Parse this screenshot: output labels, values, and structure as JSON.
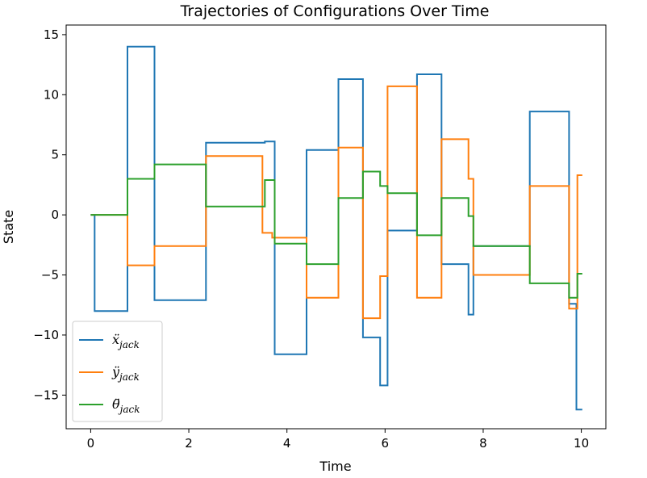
{
  "chart_data": {
    "type": "line",
    "title": "Trajectories of Configurations Over Time",
    "xlabel": "Time",
    "ylabel": "State",
    "xlim": [
      -0.5,
      10.5
    ],
    "ylim": [
      -17.8,
      15.8
    ],
    "xticks": [
      0,
      2,
      4,
      6,
      8,
      10
    ],
    "yticks": [
      -15,
      -10,
      -5,
      0,
      5,
      10,
      15
    ],
    "xtick_labels": [
      "0",
      "2",
      "4",
      "6",
      "8",
      "10"
    ],
    "ytick_labels": [
      "−15",
      "−10",
      "−5",
      "0",
      "5",
      "10",
      "15"
    ],
    "grid": false,
    "legend_position": "lower-left",
    "series": [
      {
        "name": "ẍ_jack",
        "color": "#1f77b4",
        "x": [
          0,
          0.08,
          0.08,
          0.75,
          0.75,
          1.3,
          1.3,
          2.35,
          2.35,
          3.55,
          3.55,
          3.75,
          3.75,
          4.4,
          4.4,
          5.05,
          5.05,
          5.55,
          5.55,
          5.9,
          5.9,
          6.05,
          6.05,
          6.65,
          6.65,
          7.15,
          7.15,
          7.7,
          7.7,
          7.8,
          7.8,
          8.95,
          8.95,
          9.75,
          9.75,
          9.9,
          9.9,
          10.02
        ],
        "y": [
          0,
          0,
          -8,
          -8,
          14,
          14,
          -7.1,
          -7.1,
          6,
          6,
          6.1,
          6.1,
          -11.6,
          -11.6,
          5.4,
          5.4,
          11.3,
          11.3,
          -10.2,
          -10.2,
          -14.2,
          -14.2,
          -1.3,
          -1.3,
          11.7,
          11.7,
          -4.1,
          -4.1,
          -8.3,
          -8.3,
          -2.6,
          -2.6,
          8.6,
          8.6,
          -7.4,
          -7.4,
          -16.2,
          -16.2
        ]
      },
      {
        "name": "ÿ_jack",
        "color": "#ff7f0e",
        "x": [
          0,
          0.75,
          0.75,
          1.3,
          1.3,
          2.35,
          2.35,
          3.5,
          3.5,
          3.7,
          3.7,
          4.4,
          4.4,
          5.05,
          5.05,
          5.55,
          5.55,
          5.9,
          5.9,
          6.05,
          6.05,
          6.65,
          6.65,
          7.15,
          7.15,
          7.7,
          7.7,
          7.8,
          7.8,
          8.95,
          8.95,
          9.75,
          9.75,
          9.92,
          9.92,
          10.02
        ],
        "y": [
          0,
          0,
          -4.2,
          -4.2,
          -2.6,
          -2.6,
          4.9,
          4.9,
          -1.5,
          -1.5,
          -1.9,
          -1.9,
          -6.9,
          -6.9,
          5.6,
          5.6,
          -8.6,
          -8.6,
          -5.1,
          -5.1,
          10.7,
          10.7,
          -6.9,
          -6.9,
          6.3,
          6.3,
          3,
          3,
          -5,
          -5,
          2.4,
          2.4,
          -7.8,
          -7.8,
          3.3,
          3.3
        ]
      },
      {
        "name": "θ̈_jack",
        "color": "#2ca02c",
        "x": [
          0,
          0.75,
          0.75,
          1.3,
          1.3,
          2.35,
          2.35,
          3.55,
          3.55,
          3.75,
          3.75,
          4.4,
          4.4,
          5.05,
          5.05,
          5.55,
          5.55,
          5.9,
          5.9,
          6.05,
          6.05,
          6.65,
          6.65,
          7.15,
          7.15,
          7.7,
          7.7,
          7.8,
          7.8,
          8.95,
          8.95,
          9.75,
          9.75,
          9.92,
          9.92,
          10.02
        ],
        "y": [
          0,
          0,
          3,
          3,
          4.2,
          4.2,
          0.7,
          0.7,
          2.9,
          2.9,
          -2.4,
          -2.4,
          -4.1,
          -4.1,
          1.4,
          1.4,
          3.6,
          3.6,
          2.4,
          2.4,
          1.8,
          1.8,
          -1.7,
          -1.7,
          1.4,
          1.4,
          -0.1,
          -0.1,
          -2.6,
          -2.6,
          -5.7,
          -5.7,
          -6.9,
          -6.9,
          -4.9,
          -4.9
        ]
      }
    ]
  }
}
